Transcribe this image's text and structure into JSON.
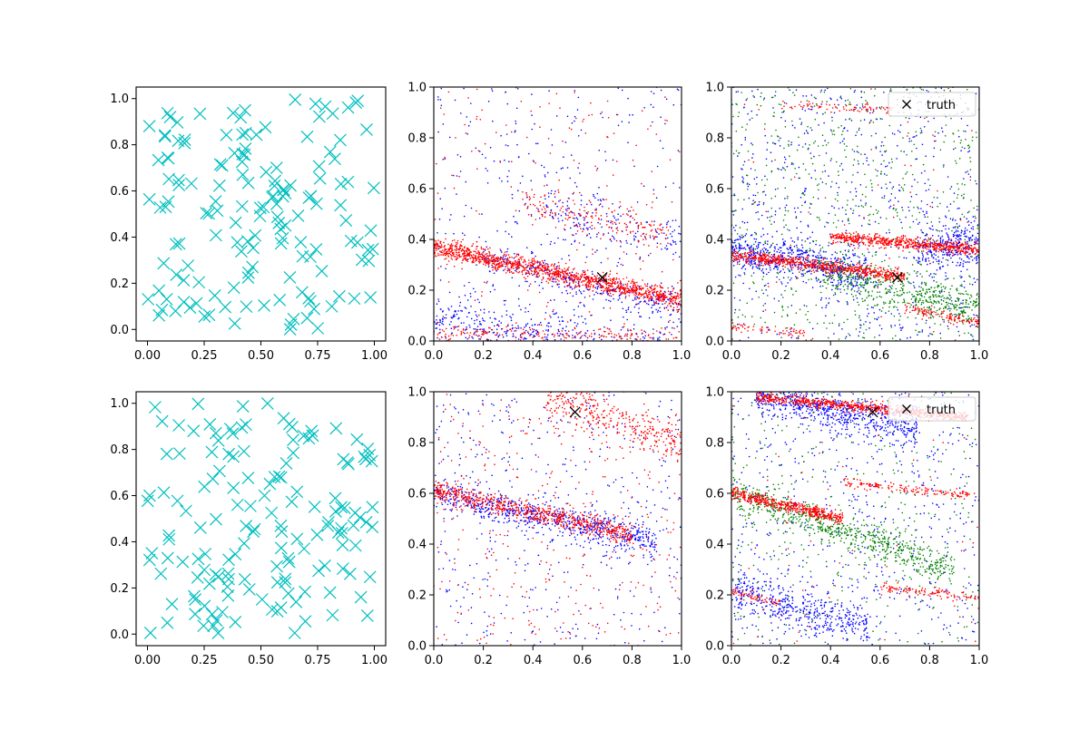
{
  "figure": {
    "background": "#ffffff",
    "layout": "2 rows x 3 columns"
  },
  "chart_data": [
    {
      "type": "scatter",
      "panel": "row1-col1",
      "xlim": [
        -0.05,
        1.05
      ],
      "ylim": [
        -0.05,
        1.05
      ],
      "xticks": [
        "0.00",
        "0.25",
        "0.50",
        "0.75",
        "1.00"
      ],
      "yticks": [
        "0.0",
        "0.2",
        "0.4",
        "0.6",
        "0.8",
        "1.0"
      ],
      "marker": "x",
      "color": "#00bfbf",
      "distribution": "uniform",
      "n_points": 150,
      "seed": 11,
      "series": []
    },
    {
      "type": "scatter",
      "panel": "row1-col2",
      "xlim": [
        0,
        1
      ],
      "ylim": [
        0,
        1
      ],
      "xticks": [
        "0.0",
        "0.2",
        "0.4",
        "0.6",
        "0.8",
        "1.0"
      ],
      "yticks": [
        "0.0",
        "0.2",
        "0.4",
        "0.6",
        "0.8",
        "1.0"
      ],
      "truth_point": {
        "x": 0.68,
        "y": 0.25,
        "color": "#000000",
        "marker": "x"
      },
      "series": [
        {
          "color": "#0000ff",
          "marker": "dot",
          "bands": [
            {
              "x0": 0.0,
              "x1": 1.0,
              "y_at_x0": 0.08,
              "y_at_x1": -0.05,
              "spread": 0.05,
              "n": 500
            },
            {
              "x0": 0.2,
              "x1": 1.0,
              "y_at_x0": 0.33,
              "y_at_x1": 0.12,
              "spread": 0.03,
              "n": 300
            },
            {
              "x0": 0.45,
              "x1": 1.0,
              "y_at_x0": 0.52,
              "y_at_x1": 0.4,
              "spread": 0.05,
              "n": 150
            }
          ],
          "uniform_n": 350
        },
        {
          "color": "#ff0000",
          "marker": "dot",
          "bands": [
            {
              "x0": 0.0,
              "x1": 1.0,
              "y_at_x0": 0.37,
              "y_at_x1": 0.16,
              "spread": 0.018,
              "n": 1300
            },
            {
              "x0": 0.0,
              "x1": 1.0,
              "y_at_x0": 0.03,
              "y_at_x1": 0.02,
              "spread": 0.015,
              "n": 200
            },
            {
              "x0": 0.35,
              "x1": 0.95,
              "y_at_x0": 0.55,
              "y_at_x1": 0.42,
              "spread": 0.04,
              "n": 200
            }
          ],
          "uniform_n": 200
        }
      ]
    },
    {
      "type": "scatter",
      "panel": "row1-col3",
      "xlim": [
        0,
        1
      ],
      "ylim": [
        0,
        1
      ],
      "xticks": [
        "0.0",
        "0.2",
        "0.4",
        "0.6",
        "0.8",
        "1.0"
      ],
      "yticks": [
        "0.0",
        "0.2",
        "0.4",
        "0.6",
        "0.8",
        "1.0"
      ],
      "legend": {
        "label": "truth",
        "position": "upper right",
        "marker": "x"
      },
      "truth_point": {
        "x": 0.67,
        "y": 0.25,
        "color": "#000000",
        "marker": "x"
      },
      "series": [
        {
          "color": "#0000ff",
          "marker": "dot",
          "bands": [
            {
              "x0": 0.0,
              "x1": 0.55,
              "y_at_x0": 0.36,
              "y_at_x1": 0.26,
              "spread": 0.04,
              "n": 600
            },
            {
              "x0": 0.75,
              "x1": 1.0,
              "y_at_x0": 0.36,
              "y_at_x1": 0.38,
              "spread": 0.05,
              "n": 300
            }
          ],
          "uniform_n": 700
        },
        {
          "color": "#008000",
          "marker": "dot",
          "bands": [
            {
              "x0": 0.35,
              "x1": 1.0,
              "y_at_x0": 0.28,
              "y_at_x1": 0.12,
              "spread": 0.04,
              "n": 500
            }
          ],
          "uniform_n": 700
        },
        {
          "color": "#ff0000",
          "marker": "dot",
          "bands": [
            {
              "x0": 0.0,
              "x1": 0.7,
              "y_at_x0": 0.34,
              "y_at_x1": 0.255,
              "spread": 0.013,
              "n": 700
            },
            {
              "x0": 0.4,
              "x1": 1.0,
              "y_at_x0": 0.41,
              "y_at_x1": 0.36,
              "spread": 0.012,
              "n": 600
            },
            {
              "x0": 0.2,
              "x1": 0.65,
              "y_at_x0": 0.93,
              "y_at_x1": 0.91,
              "spread": 0.01,
              "n": 80
            },
            {
              "x0": 0.7,
              "x1": 1.0,
              "y_at_x0": 0.13,
              "y_at_x1": 0.07,
              "spread": 0.01,
              "n": 120
            },
            {
              "x0": 0.0,
              "x1": 0.3,
              "y_at_x0": 0.06,
              "y_at_x1": 0.03,
              "spread": 0.01,
              "n": 60
            }
          ],
          "uniform_n": 60
        }
      ]
    },
    {
      "type": "scatter",
      "panel": "row2-col1",
      "xlim": [
        -0.05,
        1.05
      ],
      "ylim": [
        -0.05,
        1.05
      ],
      "xticks": [
        "0.00",
        "0.25",
        "0.50",
        "0.75",
        "1.00"
      ],
      "yticks": [
        "0.0",
        "0.2",
        "0.4",
        "0.6",
        "0.8",
        "1.0"
      ],
      "marker": "x",
      "color": "#00bfbf",
      "distribution": "uniform",
      "n_points": 150,
      "seed": 29,
      "series": []
    },
    {
      "type": "scatter",
      "panel": "row2-col2",
      "xlim": [
        0,
        1
      ],
      "ylim": [
        0,
        1
      ],
      "xticks": [
        "0.0",
        "0.2",
        "0.4",
        "0.6",
        "0.8",
        "1.0"
      ],
      "yticks": [
        "0.0",
        "0.2",
        "0.4",
        "0.6",
        "0.8",
        "1.0"
      ],
      "truth_point": {
        "x": 0.57,
        "y": 0.92,
        "color": "#000000",
        "marker": "x"
      },
      "series": [
        {
          "color": "#0000ff",
          "marker": "dot",
          "bands": [
            {
              "x0": 0.0,
              "x1": 0.9,
              "y_at_x0": 0.6,
              "y_at_x1": 0.41,
              "spread": 0.03,
              "n": 700
            }
          ],
          "uniform_n": 450
        },
        {
          "color": "#ff0000",
          "marker": "dot",
          "bands": [
            {
              "x0": 0.0,
              "x1": 0.8,
              "y_at_x0": 0.61,
              "y_at_x1": 0.44,
              "spread": 0.02,
              "n": 700
            },
            {
              "x0": 0.45,
              "x1": 1.0,
              "y_at_x0": 0.98,
              "y_at_x1": 0.8,
              "spread": 0.04,
              "n": 350
            }
          ],
          "uniform_n": 350
        }
      ]
    },
    {
      "type": "scatter",
      "panel": "row2-col3",
      "xlim": [
        0,
        1
      ],
      "ylim": [
        0,
        1
      ],
      "xticks": [
        "0.0",
        "0.2",
        "0.4",
        "0.6",
        "0.8",
        "1.0"
      ],
      "yticks": [
        "0.0",
        "0.2",
        "0.4",
        "0.6",
        "0.8",
        "1.0"
      ],
      "legend": {
        "label": "truth",
        "position": "upper right",
        "marker": "x"
      },
      "truth_point": {
        "x": 0.57,
        "y": 0.92,
        "color": "#000000",
        "marker": "x"
      },
      "series": [
        {
          "color": "#0000ff",
          "marker": "dot",
          "bands": [
            {
              "x0": 0.1,
              "x1": 0.75,
              "y_at_x0": 0.99,
              "y_at_x1": 0.85,
              "spread": 0.04,
              "n": 700
            },
            {
              "x0": 0.0,
              "x1": 0.55,
              "y_at_x0": 0.21,
              "y_at_x1": 0.08,
              "spread": 0.04,
              "n": 450
            }
          ],
          "uniform_n": 600
        },
        {
          "color": "#008000",
          "marker": "dot",
          "bands": [
            {
              "x0": 0.0,
              "x1": 0.9,
              "y_at_x0": 0.6,
              "y_at_x1": 0.3,
              "spread": 0.035,
              "n": 700
            }
          ],
          "uniform_n": 350
        },
        {
          "color": "#ff0000",
          "marker": "dot",
          "bands": [
            {
              "x0": 0.1,
              "x1": 0.95,
              "y_at_x0": 0.98,
              "y_at_x1": 0.9,
              "spread": 0.01,
              "n": 700
            },
            {
              "x0": 0.0,
              "x1": 0.45,
              "y_at_x0": 0.6,
              "y_at_x1": 0.5,
              "spread": 0.012,
              "n": 500
            },
            {
              "x0": 0.45,
              "x1": 1.0,
              "y_at_x0": 0.64,
              "y_at_x1": 0.59,
              "spread": 0.01,
              "n": 150
            },
            {
              "x0": 0.6,
              "x1": 1.0,
              "y_at_x0": 0.23,
              "y_at_x1": 0.19,
              "spread": 0.01,
              "n": 120
            },
            {
              "x0": 0.0,
              "x1": 0.2,
              "y_at_x0": 0.21,
              "y_at_x1": 0.17,
              "spread": 0.01,
              "n": 60
            }
          ],
          "uniform_n": 60
        }
      ]
    }
  ]
}
